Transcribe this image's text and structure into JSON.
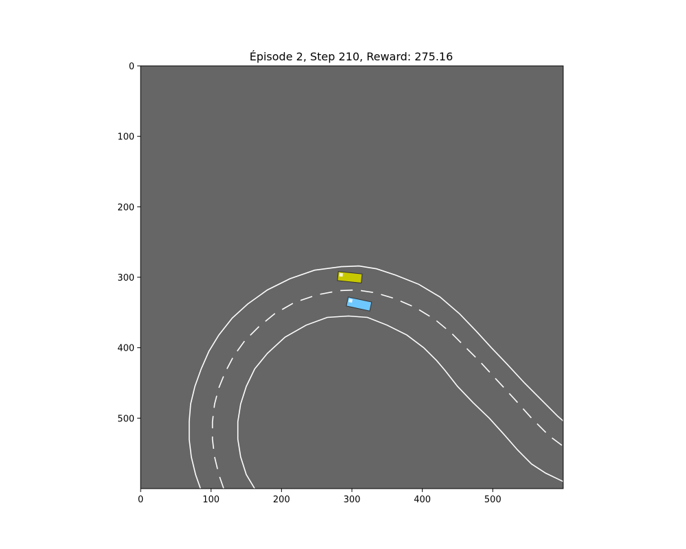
{
  "title": "Épisode 2, Step 210, Reward: 275.16",
  "episode": 2,
  "step": 210,
  "reward": 275.16,
  "axes": {
    "xlim": [
      0,
      600
    ],
    "ylim": [
      0,
      600
    ],
    "y_inverted": true,
    "xticks": [
      0,
      100,
      200,
      300,
      400,
      500
    ],
    "yticks": [
      0,
      100,
      200,
      300,
      400,
      500
    ],
    "xtick_labels": [
      "0",
      "100",
      "200",
      "300",
      "400",
      "500"
    ],
    "ytick_labels": [
      "0",
      "100",
      "200",
      "300",
      "400",
      "500"
    ]
  },
  "colors": {
    "background": "#666666",
    "lane_line": "#ffffff",
    "ego_car": "#6ec8ff",
    "other_car": "#c8c800",
    "frame": "#000000"
  },
  "road": {
    "outer_edge": [
      [
        85,
        600
      ],
      [
        78,
        580
      ],
      [
        72,
        555
      ],
      [
        69,
        530
      ],
      [
        69,
        505
      ],
      [
        71,
        480
      ],
      [
        77,
        455
      ],
      [
        86,
        430
      ],
      [
        97,
        405
      ],
      [
        111,
        382
      ],
      [
        130,
        358
      ],
      [
        152,
        338
      ],
      [
        180,
        318
      ],
      [
        212,
        302
      ],
      [
        247,
        290
      ],
      [
        285,
        285
      ],
      [
        310,
        284
      ],
      [
        335,
        288
      ],
      [
        362,
        297
      ],
      [
        395,
        310
      ],
      [
        425,
        328
      ],
      [
        453,
        352
      ],
      [
        477,
        377
      ],
      [
        498,
        400
      ],
      [
        520,
        423
      ],
      [
        545,
        450
      ],
      [
        570,
        475
      ],
      [
        592,
        497
      ],
      [
        600,
        504
      ]
    ],
    "center_line": [
      [
        118,
        600
      ],
      [
        111,
        580
      ],
      [
        105,
        555
      ],
      [
        102,
        530
      ],
      [
        102,
        505
      ],
      [
        105,
        480
      ],
      [
        111,
        457
      ],
      [
        120,
        435
      ],
      [
        132,
        412
      ],
      [
        148,
        390
      ],
      [
        168,
        370
      ],
      [
        190,
        352
      ],
      [
        218,
        336
      ],
      [
        250,
        325
      ],
      [
        282,
        319
      ],
      [
        307,
        318
      ],
      [
        333,
        322
      ],
      [
        360,
        330
      ],
      [
        390,
        343
      ],
      [
        418,
        360
      ],
      [
        442,
        380
      ],
      [
        462,
        400
      ],
      [
        482,
        420
      ],
      [
        505,
        445
      ],
      [
        530,
        472
      ],
      [
        555,
        500
      ],
      [
        580,
        525
      ],
      [
        600,
        540
      ]
    ],
    "inner_edge": [
      [
        162,
        600
      ],
      [
        150,
        580
      ],
      [
        142,
        555
      ],
      [
        138,
        530
      ],
      [
        138,
        505
      ],
      [
        142,
        480
      ],
      [
        150,
        455
      ],
      [
        162,
        430
      ],
      [
        180,
        408
      ],
      [
        205,
        385
      ],
      [
        235,
        368
      ],
      [
        265,
        357
      ],
      [
        295,
        355
      ],
      [
        322,
        357
      ],
      [
        350,
        368
      ],
      [
        378,
        382
      ],
      [
        402,
        400
      ],
      [
        420,
        418
      ],
      [
        432,
        432
      ],
      [
        450,
        455
      ],
      [
        472,
        478
      ],
      [
        495,
        500
      ],
      [
        515,
        522
      ],
      [
        535,
        545
      ],
      [
        555,
        565
      ],
      [
        575,
        578
      ],
      [
        600,
        590
      ]
    ]
  },
  "vehicles": [
    {
      "id": "other",
      "x": 297,
      "y": 300,
      "length": 34,
      "width": 13,
      "heading_deg": 6
    },
    {
      "id": "ego",
      "x": 310,
      "y": 338,
      "length": 34,
      "width": 13,
      "heading_deg": 12
    }
  ]
}
